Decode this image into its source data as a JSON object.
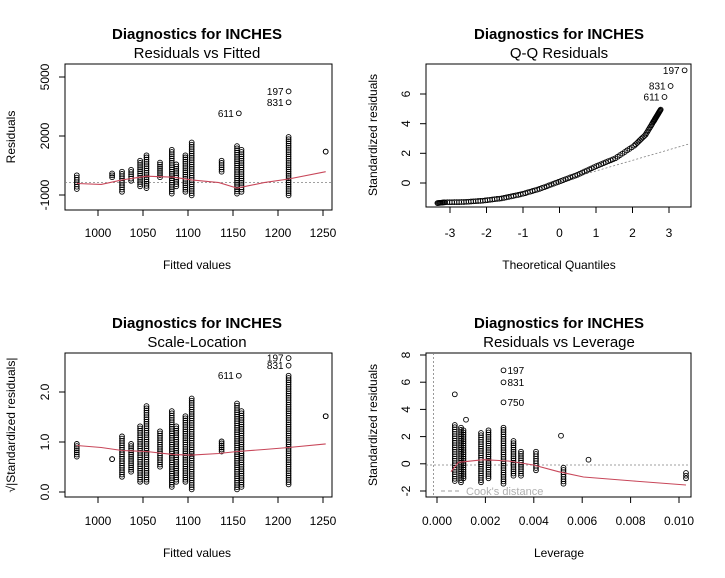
{
  "panels": [
    {
      "id": "resid-fitted",
      "title": "Diagnostics for INCHES",
      "subtitle": "Residuals vs Fitted",
      "xlabel": "Fitted values",
      "ylabel": "Residuals",
      "xticks": [
        "1000",
        "1050",
        "1100",
        "1150",
        "1200",
        "1250"
      ],
      "yticks": [
        "-1000",
        "2000",
        "5000"
      ],
      "point_labels": [
        "197",
        "831",
        "611"
      ]
    },
    {
      "id": "qq",
      "title": "Diagnostics for INCHES",
      "subtitle": "Q-Q Residuals",
      "xlabel": "Theoretical Quantiles",
      "ylabel": "Standardized residuals",
      "xticks": [
        "-3",
        "-2",
        "-1",
        "0",
        "1",
        "2",
        "3"
      ],
      "yticks": [
        "0",
        "2",
        "4",
        "6"
      ],
      "point_labels": [
        "197",
        "831",
        "611"
      ]
    },
    {
      "id": "scale-location",
      "title": "Diagnostics for INCHES",
      "subtitle": "Scale-Location",
      "xlabel": "Fitted values",
      "ylabel": "√|Standardized residuals|",
      "xticks": [
        "1000",
        "1050",
        "1100",
        "1150",
        "1200",
        "1250"
      ],
      "yticks": [
        "0.0",
        "1.0",
        "2.0"
      ],
      "point_labels": [
        "197",
        "831",
        "611"
      ]
    },
    {
      "id": "resid-leverage",
      "title": "Diagnostics for INCHES",
      "subtitle": "Residuals vs Leverage",
      "xlabel": "Leverage",
      "ylabel": "Standardized residuals",
      "xticks": [
        "0.000",
        "0.002",
        "0.004",
        "0.006",
        "0.008",
        "0.010"
      ],
      "yticks": [
        "-2",
        "0",
        "2",
        "4",
        "6",
        "8"
      ],
      "point_labels": [
        "197",
        "831",
        "750"
      ],
      "legend_label": "Cook's distance"
    }
  ],
  "colors": {
    "smoother": "#c8475a",
    "reference": "#808080",
    "points": "#000000",
    "cooks": "#bdbdbd"
  },
  "chart_data": [
    {
      "type": "scatter",
      "title": "Diagnostics for INCHES",
      "subtitle": "Residuals vs Fitted",
      "xlabel": "Fitted values",
      "ylabel": "Residuals",
      "xlim": [
        960,
        1255
      ],
      "ylim": [
        -1500,
        6500
      ],
      "groups": [
        {
          "x": 973,
          "y": [
            -350,
            400
          ]
        },
        {
          "x": 1012,
          "y": [
            300,
            500
          ]
        },
        {
          "x": 1023,
          "y": [
            -500,
            600
          ]
        },
        {
          "x": 1033,
          "y": [
            100,
            700
          ]
        },
        {
          "x": 1043,
          "y": [
            -200,
            1200
          ]
        },
        {
          "x": 1050,
          "y": [
            -300,
            1500
          ]
        },
        {
          "x": 1065,
          "y": [
            300,
            1100
          ]
        },
        {
          "x": 1078,
          "y": [
            -600,
            1800
          ]
        },
        {
          "x": 1083,
          "y": [
            -200,
            1000
          ]
        },
        {
          "x": 1093,
          "y": [
            -500,
            1500
          ]
        },
        {
          "x": 1100,
          "y": [
            -700,
            2200
          ]
        },
        {
          "x": 1133,
          "y": [
            600,
            1200
          ]
        },
        {
          "x": 1150,
          "y": [
            -600,
            2000
          ]
        },
        {
          "x": 1155,
          "y": [
            -500,
            1800
          ]
        },
        {
          "x": 1207,
          "y": [
            -700,
            2500
          ]
        },
        {
          "x": 1248,
          "y": [
            1700,
            1700
          ]
        }
      ],
      "outliers": [
        {
          "label": "197",
          "x": 1207,
          "y": 5000
        },
        {
          "label": "831",
          "x": 1207,
          "y": 4400
        },
        {
          "label": "611",
          "x": 1152,
          "y": 3800
        }
      ],
      "smoother": {
        "x": [
          973,
          1000,
          1023,
          1050,
          1080,
          1100,
          1130,
          1150,
          1180,
          1207,
          1248
        ],
        "y": [
          -50,
          -100,
          150,
          350,
          300,
          150,
          0,
          -300,
          0,
          200,
          600
        ]
      },
      "reference_y": 0
    },
    {
      "type": "scatter",
      "title": "Diagnostics for INCHES",
      "subtitle": "Q-Q Residuals",
      "xlabel": "Theoretical Quantiles",
      "ylabel": "Standardized residuals",
      "xlim": [
        -3.5,
        3.5
      ],
      "ylim": [
        -1.6,
        7.5
      ],
      "curve": {
        "x": [
          -3.2,
          -3,
          -2.5,
          -2,
          -1.5,
          -1,
          -0.5,
          0,
          0.5,
          1,
          1.5,
          2,
          2.3,
          2.5,
          2.6,
          2.7
        ],
        "y": [
          -1.35,
          -1.3,
          -1.28,
          -1.2,
          -1.05,
          -0.8,
          -0.45,
          0,
          0.45,
          1.0,
          1.5,
          2.3,
          3.0,
          3.8,
          4.2,
          4.6
        ]
      },
      "outliers": [
        {
          "label": "197",
          "x": 3.33,
          "y": 7.1
        },
        {
          "label": "831",
          "x": 2.96,
          "y": 6.1
        },
        {
          "label": "611",
          "x": 2.8,
          "y": 5.4
        }
      ],
      "reference_line": {
        "intercept": 0,
        "slope": 0.7
      }
    },
    {
      "type": "scatter",
      "title": "Diagnostics for INCHES",
      "subtitle": "Scale-Location",
      "xlabel": "Fitted values",
      "ylabel": "√|Standardized residuals|",
      "xlim": [
        960,
        1255
      ],
      "ylim": [
        -0.1,
        2.75
      ],
      "groups": [
        {
          "x": 973,
          "y": [
            0.7,
            0.95
          ]
        },
        {
          "x": 1012,
          "y": [
            0.65,
            0.65
          ]
        },
        {
          "x": 1023,
          "y": [
            0.3,
            1.1
          ]
        },
        {
          "x": 1033,
          "y": [
            0.4,
            0.95
          ]
        },
        {
          "x": 1043,
          "y": [
            0.2,
            1.3
          ]
        },
        {
          "x": 1050,
          "y": [
            0.2,
            1.7
          ]
        },
        {
          "x": 1065,
          "y": [
            0.5,
            1.2
          ]
        },
        {
          "x": 1078,
          "y": [
            0.1,
            1.6
          ]
        },
        {
          "x": 1083,
          "y": [
            0.2,
            1.3
          ]
        },
        {
          "x": 1093,
          "y": [
            0.2,
            1.5
          ]
        },
        {
          "x": 1100,
          "y": [
            0.05,
            1.85
          ]
        },
        {
          "x": 1133,
          "y": [
            0.8,
            1.0
          ]
        },
        {
          "x": 1150,
          "y": [
            0.05,
            1.75
          ]
        },
        {
          "x": 1155,
          "y": [
            0.1,
            1.6
          ]
        },
        {
          "x": 1207,
          "y": [
            0.15,
            2.3
          ]
        },
        {
          "x": 1248,
          "y": [
            1.5,
            1.5
          ]
        }
      ],
      "outliers": [
        {
          "label": "197",
          "x": 1207,
          "y": 2.65
        },
        {
          "label": "831",
          "x": 1207,
          "y": 2.5
        },
        {
          "label": "611",
          "x": 1152,
          "y": 2.3
        }
      ],
      "smoother": {
        "x": [
          973,
          1000,
          1023,
          1050,
          1080,
          1100,
          1130,
          1150,
          1180,
          1207,
          1248
        ],
        "y": [
          0.92,
          0.88,
          0.82,
          0.8,
          0.74,
          0.73,
          0.76,
          0.8,
          0.84,
          0.88,
          0.95
        ]
      }
    },
    {
      "type": "scatter",
      "title": "Diagnostics for INCHES",
      "subtitle": "Residuals vs Leverage",
      "xlabel": "Leverage",
      "ylabel": "Standardized residuals",
      "xlim": [
        -0.0003,
        0.0103
      ],
      "ylim": [
        -2.4,
        8.4
      ],
      "groups": [
        {
          "x": 0.00085,
          "y": [
            -1.2,
            3.0
          ]
        },
        {
          "x": 0.0011,
          "y": [
            -1.3,
            2.8
          ]
        },
        {
          "x": 0.0012,
          "y": [
            -1.0,
            2.6
          ]
        },
        {
          "x": 0.0019,
          "y": [
            -1.3,
            2.4
          ]
        },
        {
          "x": 0.0022,
          "y": [
            -1.0,
            2.6
          ]
        },
        {
          "x": 0.0028,
          "y": [
            -1.4,
            2.8
          ]
        },
        {
          "x": 0.0032,
          "y": [
            -0.8,
            1.8
          ]
        },
        {
          "x": 0.0035,
          "y": [
            -0.8,
            1.0
          ]
        },
        {
          "x": 0.0041,
          "y": [
            -0.4,
            1.0
          ]
        },
        {
          "x": 0.0052,
          "y": [
            -1.4,
            -0.2
          ]
        },
        {
          "x": 0.0101,
          "y": [
            -1.0,
            -0.6
          ]
        }
      ],
      "extras": [
        {
          "x": 0.00085,
          "y": 5.3
        },
        {
          "x": 0.0013,
          "y": 3.4
        },
        {
          "x": 0.0051,
          "y": 2.2
        },
        {
          "x": 0.0062,
          "y": 0.4
        }
      ],
      "outliers": [
        {
          "label": "197",
          "x": 0.0028,
          "y": 7.1
        },
        {
          "label": "831",
          "x": 0.0028,
          "y": 6.2
        },
        {
          "label": "750",
          "x": 0.0028,
          "y": 4.7
        }
      ],
      "smoother": {
        "x": [
          0.0007,
          0.001,
          0.002,
          0.003,
          0.004,
          0.005,
          0.006,
          0.008,
          0.0101
        ],
        "y": [
          -0.5,
          0.2,
          0.4,
          0.3,
          0.0,
          -0.5,
          -0.9,
          -1.2,
          -1.5
        ]
      },
      "reference_y": 0,
      "legend": "bottom-left"
    }
  ]
}
